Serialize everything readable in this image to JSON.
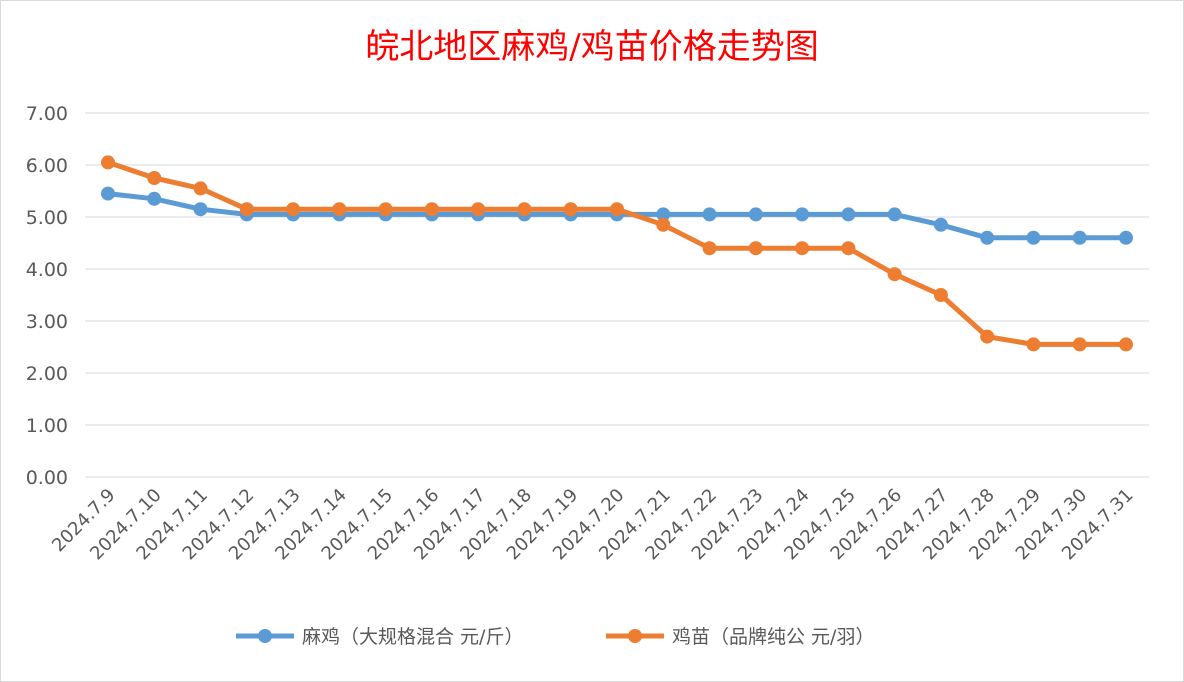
{
  "chart_data": {
    "type": "line",
    "title": "皖北地区麻鸡/鸡苗价格走势图",
    "xlabel": "",
    "ylabel": "",
    "ylim": [
      0,
      7
    ],
    "y_ticks": [
      "0.00",
      "1.00",
      "2.00",
      "3.00",
      "4.00",
      "5.00",
      "6.00",
      "7.00"
    ],
    "grid": true,
    "legend_position": "bottom",
    "categories": [
      "2024.7.9",
      "2024.7.10",
      "2024.7.11",
      "2024.7.12",
      "2024.7.13",
      "2024.7.14",
      "2024.7.15",
      "2024.7.16",
      "2024.7.17",
      "2024.7.18",
      "2024.7.19",
      "2024.7.20",
      "2024.7.21",
      "2024.7.22",
      "2024.7.23",
      "2024.7.24",
      "2024.7.25",
      "2024.7.26",
      "2024.7.27",
      "2024.7.28",
      "2024.7.29",
      "2024.7.30",
      "2024.7.31"
    ],
    "series": [
      {
        "name": "麻鸡（大规格混合 元/斤）",
        "color": "#5b9bd5",
        "values": [
          5.45,
          5.35,
          5.15,
          5.05,
          5.05,
          5.05,
          5.05,
          5.05,
          5.05,
          5.05,
          5.05,
          5.05,
          5.05,
          5.05,
          5.05,
          5.05,
          5.05,
          5.05,
          4.85,
          4.6,
          4.6,
          4.6,
          4.6
        ]
      },
      {
        "name": "鸡苗（品牌纯公 元/羽）",
        "color": "#ed7d31",
        "values": [
          6.05,
          5.75,
          5.55,
          5.15,
          5.15,
          5.15,
          5.15,
          5.15,
          5.15,
          5.15,
          5.15,
          5.15,
          4.85,
          4.4,
          4.4,
          4.4,
          4.4,
          3.9,
          3.5,
          2.7,
          2.55,
          2.55,
          2.55
        ]
      }
    ]
  }
}
